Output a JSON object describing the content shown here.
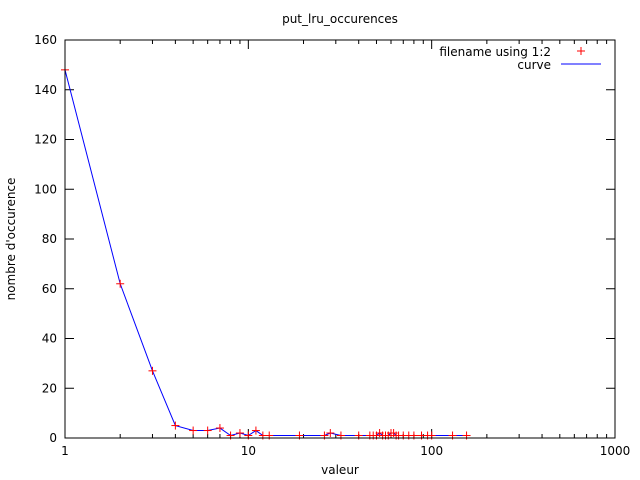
{
  "chart_data": {
    "type": "scatter",
    "title": "put_lru_occurences",
    "xlabel": "valeur",
    "ylabel": "nombre d'occurence",
    "x_scale": "log",
    "xlim": [
      1,
      1000
    ],
    "ylim": [
      0,
      160
    ],
    "x_ticks": [
      1,
      10,
      100,
      1000
    ],
    "y_ticks": [
      0,
      20,
      40,
      60,
      80,
      100,
      120,
      140,
      160
    ],
    "x_tick_labels": [
      "1",
      "10",
      "100",
      "1000"
    ],
    "y_tick_labels": [
      "0",
      "20",
      "40",
      "60",
      "80",
      "100",
      "120",
      "140",
      "160"
    ],
    "grid": false,
    "legend_position": "top-right",
    "series": [
      {
        "name": "filename using 1:2",
        "style": "points",
        "marker": "+",
        "color": "#ff0000",
        "x": [
          1,
          2,
          3,
          4,
          5,
          6,
          7,
          8,
          9,
          10,
          11,
          12,
          13,
          19,
          26,
          28,
          32,
          40,
          46,
          48,
          50,
          52,
          54,
          56,
          58,
          60,
          62,
          64,
          66,
          70,
          75,
          80,
          88,
          95,
          100,
          130,
          155
        ],
        "y": [
          148,
          62,
          27,
          5,
          3,
          3,
          4,
          1,
          2,
          1,
          3,
          1,
          1,
          1,
          1,
          2,
          1,
          1,
          1,
          1,
          1,
          2,
          1,
          1,
          1,
          2,
          2,
          1,
          1,
          1,
          1,
          1,
          1,
          1,
          1,
          1,
          1
        ]
      },
      {
        "name": "curve",
        "style": "line",
        "color": "#0000ff",
        "x": [
          1,
          2,
          3,
          4,
          5,
          6,
          7,
          8,
          9,
          10,
          11,
          12,
          13,
          19,
          26,
          28,
          32,
          40,
          46,
          48,
          50,
          52,
          54,
          56,
          58,
          60,
          62,
          64,
          66,
          70,
          75,
          80,
          88,
          95,
          100,
          130,
          155
        ],
        "y": [
          148,
          62,
          27,
          5,
          3,
          3,
          4,
          1,
          2,
          1,
          3,
          1,
          1,
          1,
          1,
          2,
          1,
          1,
          1,
          1,
          1,
          2,
          1,
          1,
          1,
          2,
          2,
          1,
          1,
          1,
          1,
          1,
          1,
          1,
          1,
          1,
          1
        ]
      }
    ]
  }
}
